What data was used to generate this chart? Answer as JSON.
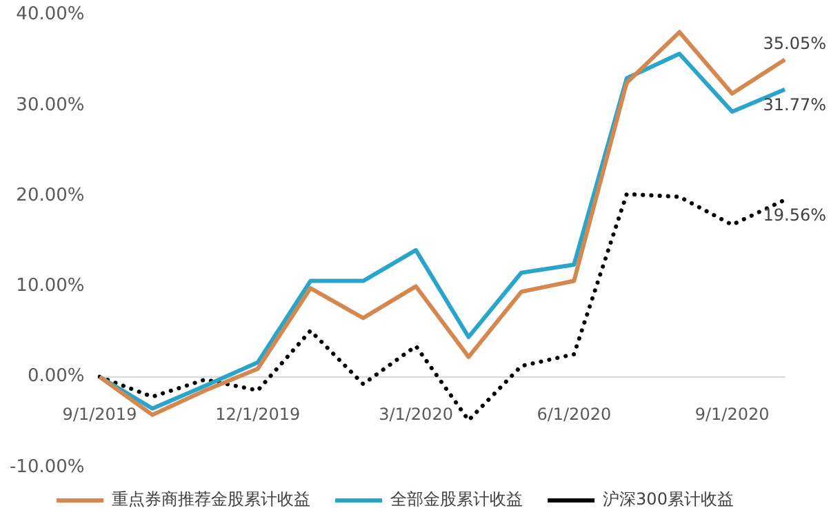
{
  "chart_data": {
    "type": "line",
    "categories": [
      "9/1/2019",
      null,
      null,
      "12/1/2019",
      null,
      null,
      "3/1/2020",
      null,
      null,
      "6/1/2020",
      null,
      null,
      "9/1/2020",
      null
    ],
    "series": [
      {
        "name": "重点券商推荐金股累计收益",
        "color": "#d4874f",
        "values": [
          0,
          -4.2,
          -1.5,
          0.9,
          9.8,
          6.5,
          10.0,
          2.2,
          9.4,
          10.6,
          32.5,
          38.1,
          31.3,
          35.05
        ],
        "value_labels": [
          null,
          null,
          null,
          null,
          null,
          null,
          null,
          null,
          null,
          null,
          null,
          null,
          null,
          "35.05%"
        ]
      },
      {
        "name": "全部金股累计收益",
        "color": "#2aa5c9",
        "values": [
          0,
          -3.5,
          -1.0,
          1.6,
          10.6,
          10.6,
          14.0,
          4.4,
          11.5,
          12.4,
          33.0,
          35.7,
          29.3,
          31.77
        ],
        "value_labels": [
          null,
          null,
          null,
          null,
          null,
          null,
          null,
          null,
          null,
          null,
          null,
          null,
          null,
          "31.77%"
        ]
      },
      {
        "name": "沪深300累计收益",
        "color": "#000000",
        "line_style": "dotted",
        "values": [
          0,
          -2.2,
          -0.3,
          -1.5,
          5.1,
          -0.8,
          3.4,
          -4.8,
          1.2,
          2.5,
          20.2,
          19.9,
          16.8,
          19.56
        ],
        "value_labels": [
          null,
          null,
          null,
          null,
          null,
          null,
          null,
          null,
          null,
          null,
          null,
          null,
          null,
          "19.56%"
        ]
      }
    ],
    "ylim": [
      -10,
      40
    ],
    "yticks": [
      {
        "value": -10,
        "label": "-10.00%"
      },
      {
        "value": 0,
        "label": "0.00%"
      },
      {
        "value": 10,
        "label": "10.00%"
      },
      {
        "value": 20,
        "label": "20.00%"
      },
      {
        "value": 30,
        "label": "30.00%"
      },
      {
        "value": 40,
        "label": "40.00%"
      }
    ],
    "grid": false,
    "legend": "bottom",
    "marker": "none",
    "line_style": "solid"
  }
}
